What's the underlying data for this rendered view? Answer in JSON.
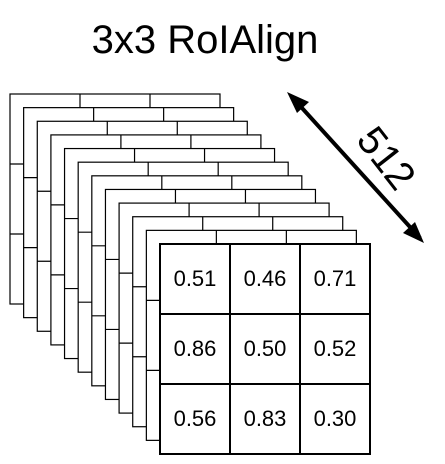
{
  "title": "3x3 RoIAlign",
  "depth_label": "512",
  "front_grid": [
    [
      "0.51",
      "0.46",
      "0.71"
    ],
    [
      "0.86",
      "0.50",
      "0.52"
    ],
    [
      "0.56",
      "0.83",
      "0.30"
    ]
  ],
  "colors": {
    "stroke": "#000000",
    "fill": "#ffffff",
    "text": "#000000"
  }
}
